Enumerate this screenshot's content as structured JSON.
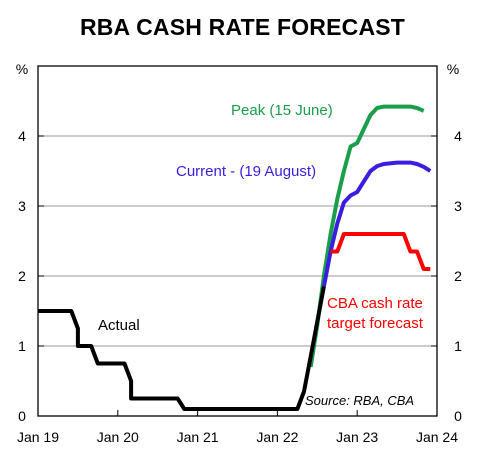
{
  "chart_data": {
    "type": "line",
    "title": "RBA CASH RATE FORECAST",
    "ylabel_left": "%",
    "ylabel_right": "%",
    "ylim": [
      0,
      5
    ],
    "yticks": [
      0,
      1,
      2,
      3,
      4
    ],
    "xlim": [
      "2019-01",
      "2024-01"
    ],
    "xticks": [
      "Jan 19",
      "Jan 20",
      "Jan 21",
      "Jan 22",
      "Jan 23",
      "Jan 24"
    ],
    "grid": "horizontal",
    "source": "Source: RBA, CBA",
    "series": [
      {
        "name": "Actual",
        "color": "#000000",
        "points": [
          [
            "2019-01",
            1.5
          ],
          [
            "2019-06",
            1.5
          ],
          [
            "2019-07",
            1.25
          ],
          [
            "2019-07",
            1.0
          ],
          [
            "2019-09",
            1.0
          ],
          [
            "2019-10",
            0.75
          ],
          [
            "2020-02",
            0.75
          ],
          [
            "2020-03",
            0.5
          ],
          [
            "2020-03",
            0.25
          ],
          [
            "2020-10",
            0.25
          ],
          [
            "2020-11",
            0.1
          ],
          [
            "2022-04",
            0.1
          ],
          [
            "2022-05",
            0.35
          ],
          [
            "2022-06",
            0.85
          ],
          [
            "2022-07",
            1.35
          ],
          [
            "2022-08",
            1.85
          ]
        ]
      },
      {
        "name": "Peak (15 June)",
        "color": "#1a9e4a",
        "points": [
          [
            "2022-06",
            0.7
          ],
          [
            "2022-07",
            1.3
          ],
          [
            "2022-08",
            2.0
          ],
          [
            "2022-09",
            2.6
          ],
          [
            "2022-10",
            3.1
          ],
          [
            "2022-11",
            3.5
          ],
          [
            "2022-12",
            3.85
          ],
          [
            "2023-01",
            3.9
          ],
          [
            "2023-02",
            4.1
          ],
          [
            "2023-03",
            4.3
          ],
          [
            "2023-04",
            4.4
          ],
          [
            "2023-05",
            4.42
          ],
          [
            "2023-07",
            4.42
          ],
          [
            "2023-09",
            4.42
          ],
          [
            "2023-10",
            4.4
          ],
          [
            "2023-11",
            4.36
          ]
        ]
      },
      {
        "name": "Current - (19 August)",
        "color": "#3a1ee0",
        "points": [
          [
            "2022-08",
            1.85
          ],
          [
            "2022-09",
            2.35
          ],
          [
            "2022-10",
            2.75
          ],
          [
            "2022-11",
            3.05
          ],
          [
            "2022-12",
            3.15
          ],
          [
            "2023-01",
            3.2
          ],
          [
            "2023-02",
            3.35
          ],
          [
            "2023-03",
            3.5
          ],
          [
            "2023-04",
            3.57
          ],
          [
            "2023-05",
            3.6
          ],
          [
            "2023-07",
            3.62
          ],
          [
            "2023-09",
            3.62
          ],
          [
            "2023-10",
            3.6
          ],
          [
            "2023-11",
            3.56
          ],
          [
            "2023-12",
            3.5
          ]
        ]
      },
      {
        "name": "CBA cash rate target forecast",
        "color": "#ff0000",
        "points": [
          [
            "2022-09",
            2.35
          ],
          [
            "2022-10",
            2.35
          ],
          [
            "2022-11",
            2.6
          ],
          [
            "2023-08",
            2.6
          ],
          [
            "2023-09",
            2.35
          ],
          [
            "2023-10",
            2.35
          ],
          [
            "2023-11",
            2.1
          ],
          [
            "2023-12",
            2.1
          ]
        ]
      }
    ],
    "annotations": [
      {
        "text": "Peak (15 June)",
        "color": "#1a9e4a"
      },
      {
        "text": "Current - (19 August)",
        "color": "#3a1ee0"
      },
      {
        "text": "Actual",
        "color": "#000000"
      },
      {
        "text": "CBA cash rate",
        "color": "#ff0000"
      },
      {
        "text": "target forecast",
        "color": "#ff0000"
      },
      {
        "text": "Source: RBA, CBA",
        "color": "#000000"
      }
    ]
  }
}
